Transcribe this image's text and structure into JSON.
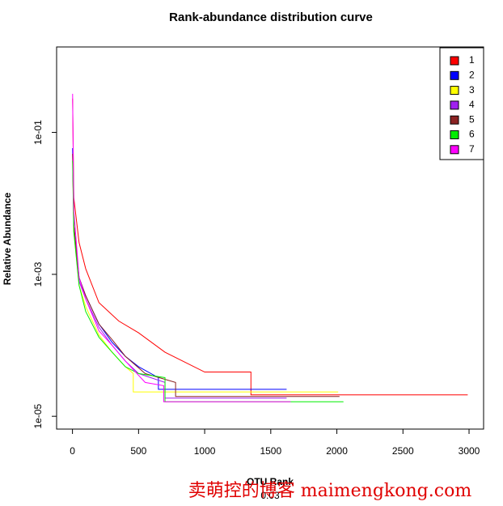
{
  "chart_data": {
    "type": "line",
    "title": "Rank-abundance distribution curve",
    "xlabel": "OTU Rank",
    "subtitle": "0.03",
    "ylabel": "Relative Abundance",
    "log_y": true,
    "legend": "top-right",
    "watermark": "卖萌控的博客  maimengkong.com",
    "xlim": [
      -120,
      3110
    ],
    "ylim": [
      6.6e-06,
      1.6
    ],
    "xticks": [
      0,
      500,
      1000,
      1500,
      2000,
      2500,
      3000
    ],
    "yticks": [
      {
        "value": 0.1,
        "label": "1e-01"
      },
      {
        "value": 0.001,
        "label": "1e-03"
      },
      {
        "value": 1e-05,
        "label": "1e-05"
      }
    ],
    "series": [
      {
        "name": "1",
        "color": "#ff0000",
        "x": [
          1,
          10,
          50,
          100,
          200,
          350,
          500,
          700,
          1000,
          1350,
          1350,
          2990
        ],
        "values": [
          0.3,
          0.012,
          0.0028,
          0.0012,
          0.0004,
          0.00022,
          0.00015,
          8e-05,
          4.2e-05,
          4.2e-05,
          2e-05,
          2e-05
        ]
      },
      {
        "name": "2",
        "color": "#0000ff",
        "x": [
          1,
          10,
          50,
          100,
          200,
          300,
          400,
          500,
          650,
          650,
          1620
        ],
        "values": [
          0.06,
          0.005,
          0.0009,
          0.0005,
          0.0002,
          0.00011,
          7e-05,
          5e-05,
          3.5e-05,
          2.4e-05,
          2.4e-05
        ]
      },
      {
        "name": "3",
        "color": "#ffff00",
        "x": [
          1,
          10,
          50,
          100,
          200,
          300,
          400,
          460,
          460,
          2010
        ],
        "values": [
          0.04,
          0.004,
          0.0007,
          0.00035,
          0.00014,
          8e-05,
          5e-05,
          4e-05,
          2.2e-05,
          2.2e-05
        ]
      },
      {
        "name": "4",
        "color": "#a020f0",
        "x": [
          1,
          10,
          50,
          100,
          200,
          300,
          400,
          500,
          700,
          700,
          1620
        ],
        "values": [
          0.05,
          0.005,
          0.0008,
          0.00045,
          0.00018,
          0.0001,
          6e-05,
          4e-05,
          3e-05,
          1.8e-05,
          1.8e-05
        ]
      },
      {
        "name": "5",
        "color": "#8b2323",
        "x": [
          1,
          10,
          50,
          100,
          200,
          300,
          400,
          550,
          780,
          780,
          2020
        ],
        "values": [
          0.05,
          0.005,
          0.0009,
          0.0005,
          0.0002,
          0.00012,
          7e-05,
          4e-05,
          3e-05,
          1.9e-05,
          1.9e-05
        ]
      },
      {
        "name": "6",
        "color": "#00ee00",
        "x": [
          1,
          10,
          50,
          100,
          200,
          300,
          400,
          500,
          700,
          700,
          2050
        ],
        "values": [
          0.04,
          0.004,
          0.0007,
          0.0003,
          0.00013,
          8e-05,
          5e-05,
          4e-05,
          3.5e-05,
          1.6e-05,
          1.6e-05
        ]
      },
      {
        "name": "7",
        "color": "#ff00ff",
        "x": [
          1,
          10,
          50,
          100,
          200,
          300,
          400,
          550,
          690,
          690,
          1650
        ],
        "values": [
          0.35,
          0.008,
          0.0009,
          0.00045,
          0.00016,
          0.0001,
          6e-05,
          3e-05,
          2.7e-05,
          1.6e-05,
          1.6e-05
        ]
      }
    ]
  }
}
